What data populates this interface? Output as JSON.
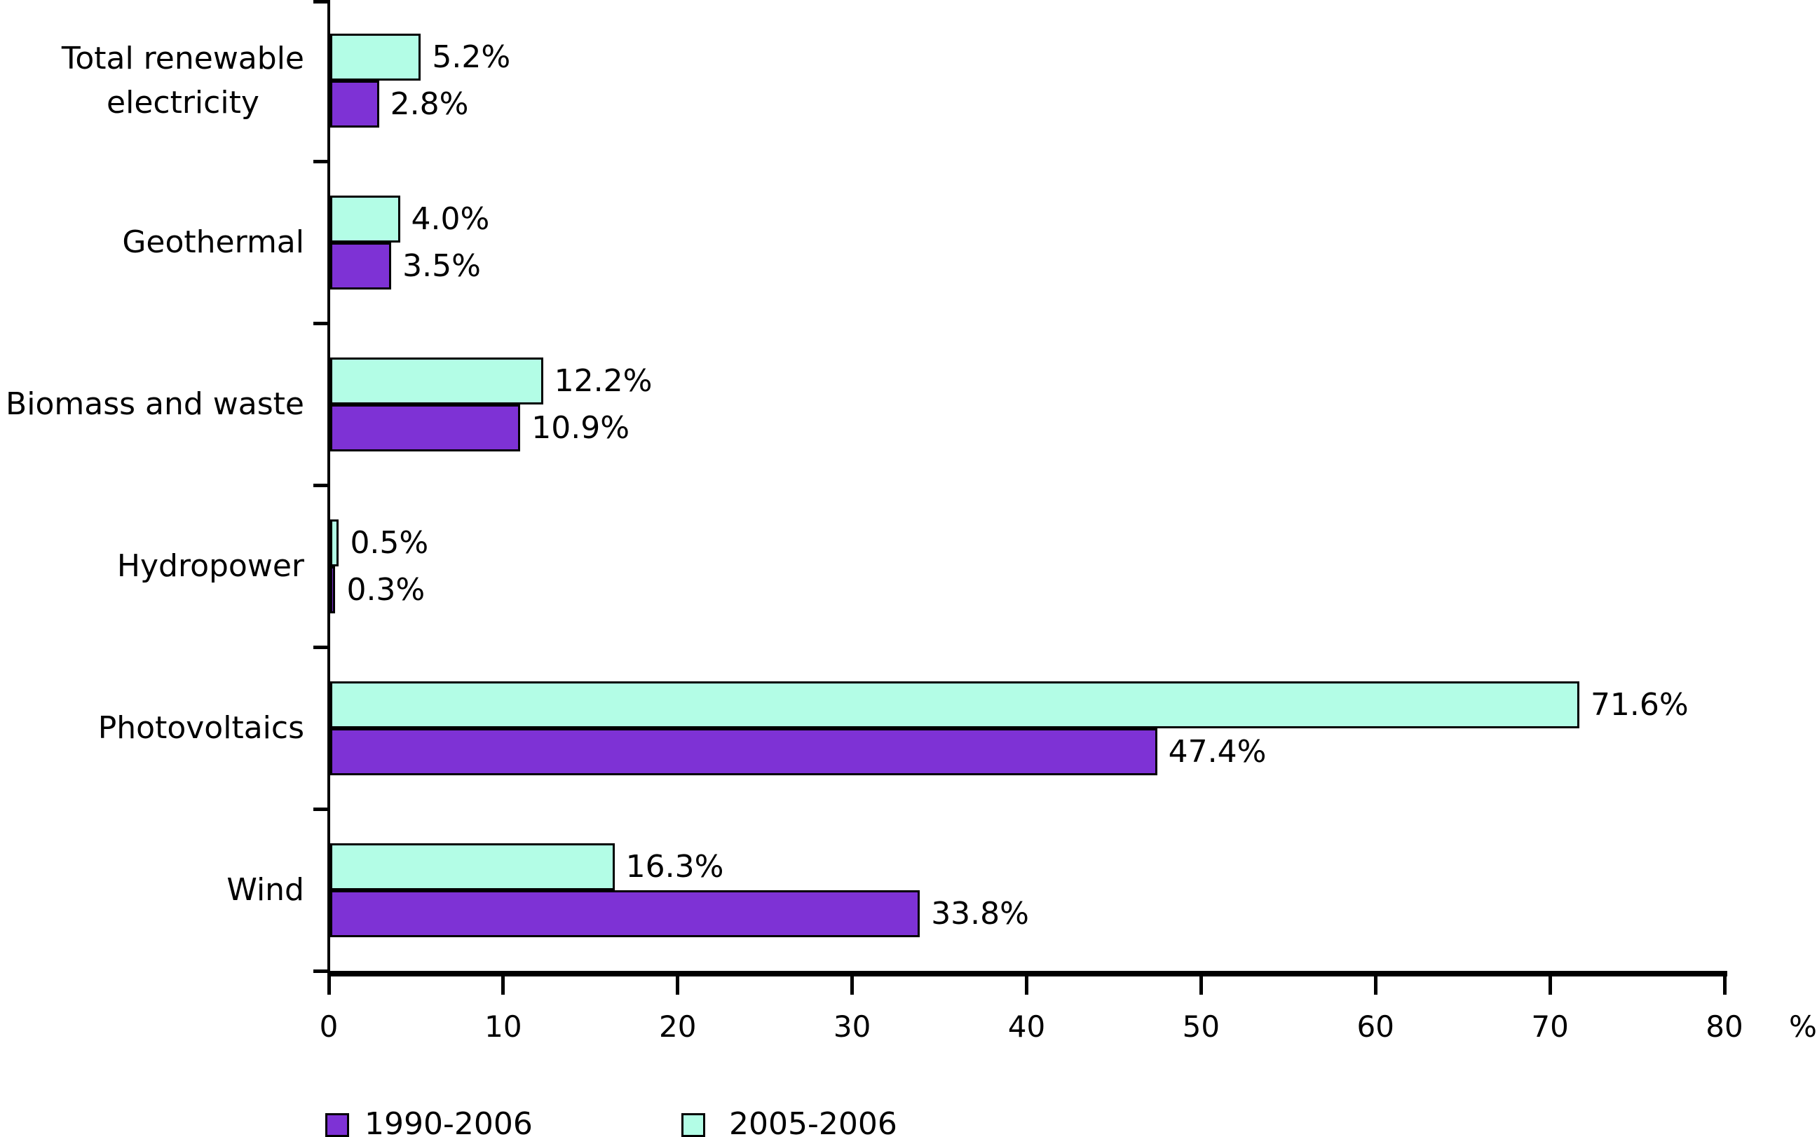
{
  "chart_data": {
    "type": "bar",
    "orientation": "horizontal",
    "title": "",
    "xlabel": "%",
    "xlim": [
      0,
      80
    ],
    "xticks": [
      0,
      10,
      20,
      30,
      40,
      50,
      60,
      70,
      80
    ],
    "grid": false,
    "background_color": "#FFFFFF",
    "axis_color": "#000000",
    "bar_border_color": "#000000",
    "categories": [
      "Total renewable\nelectricity",
      "Geothermal",
      "Biomass and waste",
      "Hydropower",
      "Photovoltaics",
      "Wind"
    ],
    "series": [
      {
        "name": "2005-2006",
        "color": "#B3FDE6",
        "values": [
          5.2,
          4.0,
          12.2,
          0.5,
          71.6,
          16.3
        ],
        "value_labels": [
          "5.2%",
          "4.0%",
          "12.2%",
          "0.5%",
          "71.6%",
          "16.3%"
        ]
      },
      {
        "name": "1990-2006",
        "color": "#7E32D5",
        "values": [
          2.8,
          3.5,
          10.9,
          0.3,
          47.4,
          33.8
        ],
        "value_labels": [
          "2.8%",
          "3.5%",
          "10.9%",
          "0.3%",
          "47.4%",
          "33.8%"
        ]
      }
    ],
    "legend_position": "bottom",
    "legend": [
      {
        "label": "1990-2006",
        "color": "#7E32D5"
      },
      {
        "label": "2005-2006",
        "color": "#B3FDE6"
      }
    ]
  }
}
